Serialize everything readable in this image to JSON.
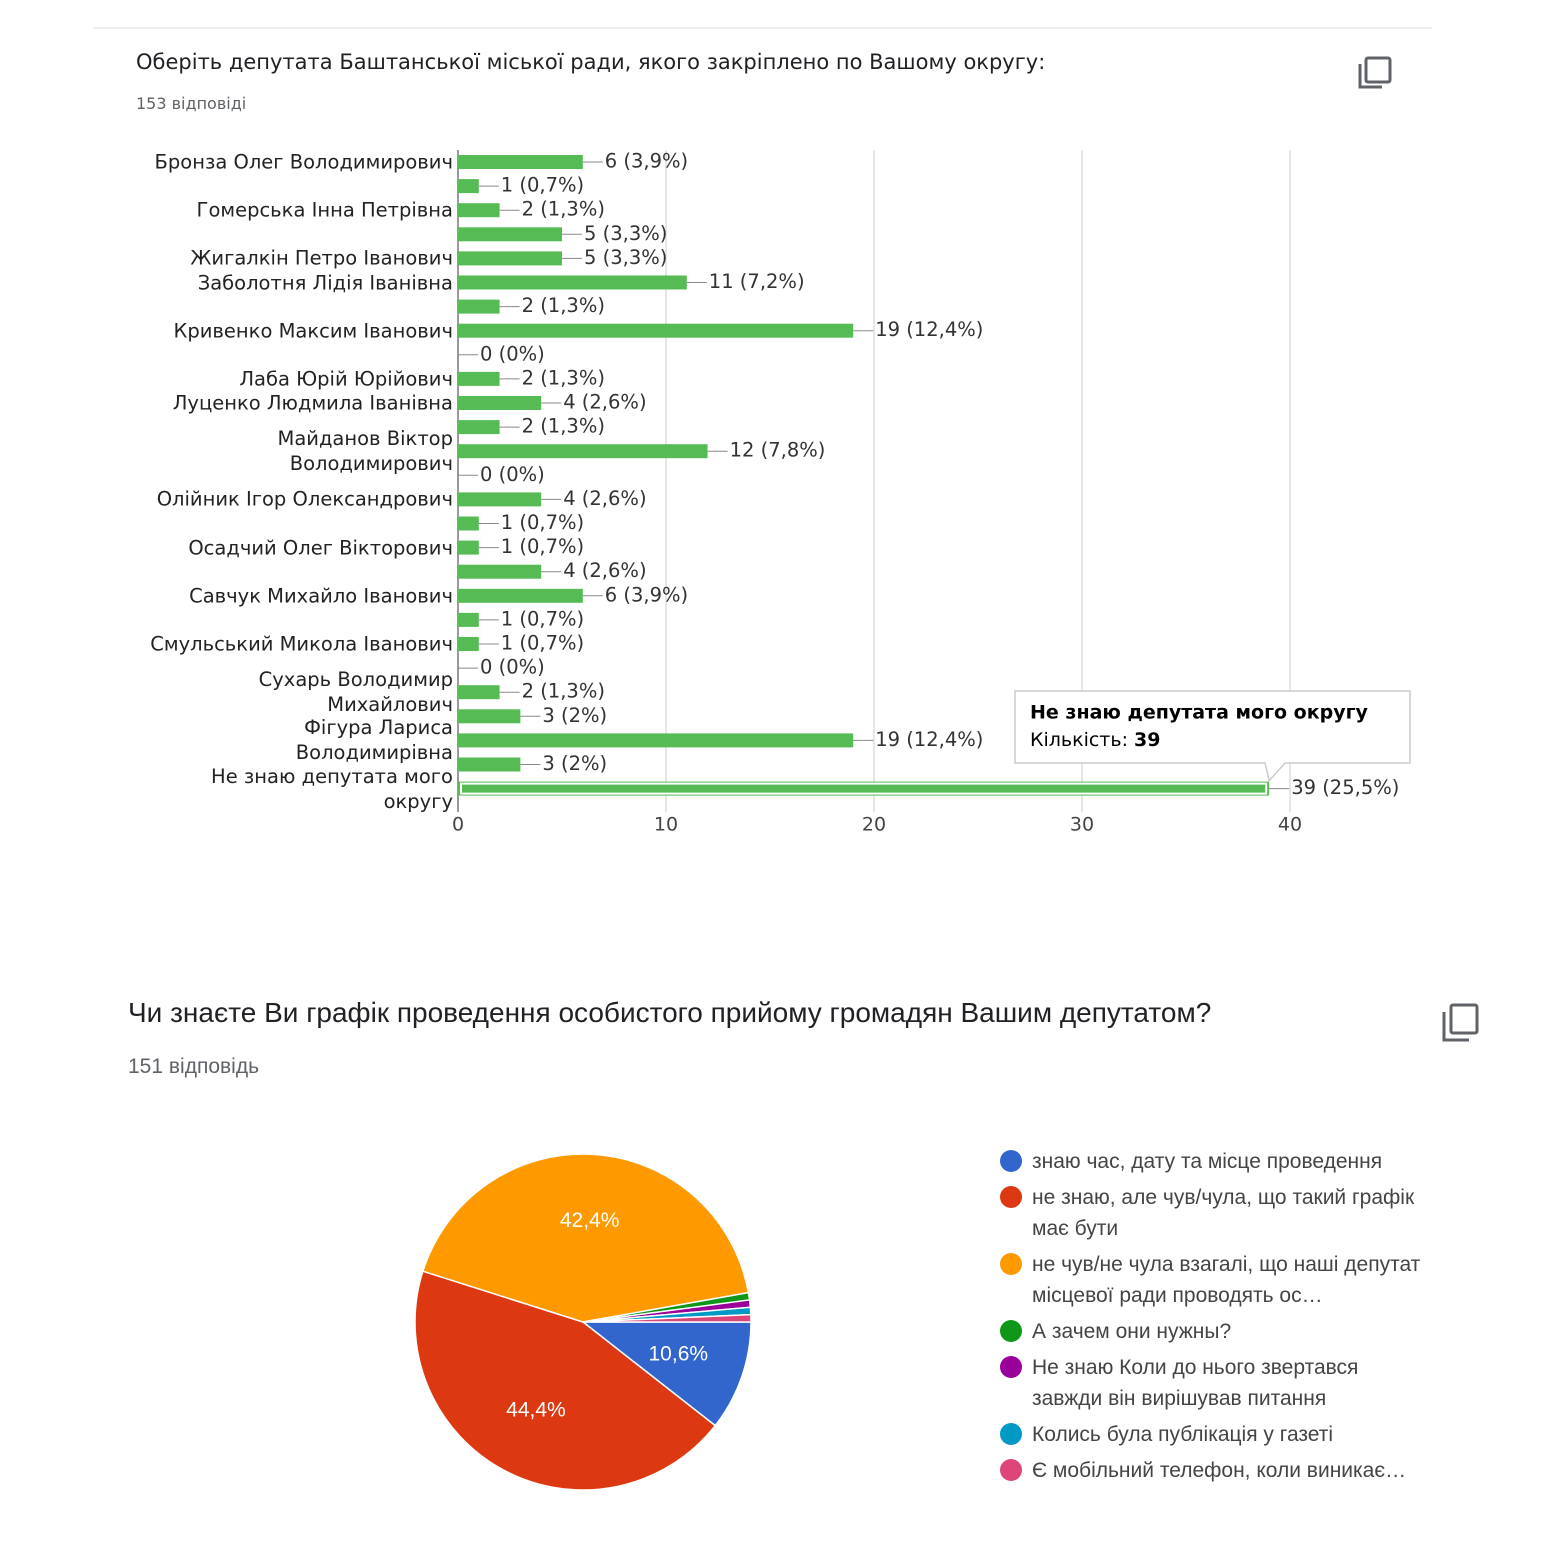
{
  "chart_data": [
    {
      "type": "bar",
      "orientation": "horizontal",
      "title": "Оберіть депутата Баштанської міської ради, якого закріплено по Вашому округу:",
      "subtitle": "153 відповіді",
      "categories": [
        "Бронза Олег Володимирович",
        null,
        "Гомерська Інна Петрівна",
        null,
        "Жигалкін Петро Іванович",
        "Заболотня Лідія Іванівна",
        null,
        "Кривенко Максим Іванович",
        null,
        "Лаба Юрій Юрійович",
        "Луценко Людмила Іванівна",
        null,
        "Майданов Віктор Володимирович",
        null,
        "Олійник Ігор Олександрович",
        null,
        "Осадчий Олег Вікторович",
        null,
        "Савчук Михайло Іванович",
        null,
        "Смульський Микола Іванович",
        null,
        "Сухарь Володимир Михайлович",
        null,
        "Фігура Лариса Володимирівна",
        null,
        "Не знаю депутата мого округу"
      ],
      "values": [
        6,
        1,
        2,
        5,
        5,
        11,
        2,
        19,
        0,
        2,
        4,
        2,
        12,
        0,
        4,
        1,
        1,
        4,
        6,
        1,
        1,
        0,
        2,
        3,
        19,
        3,
        39
      ],
      "value_labels": [
        "6 (3,9%)",
        "1 (0,7%)",
        "2 (1,3%)",
        "5 (3,3%)",
        "5 (3,3%)",
        "11 (7,2%)",
        "2 (1,3%)",
        "19 (12,4%)",
        "0 (0%)",
        "2 (1,3%)",
        "4 (2,6%)",
        "2 (1,3%)",
        "12 (7,8%)",
        "0 (0%)",
        "4 (2,6%)",
        "1 (0,7%)",
        "1 (0,7%)",
        "4 (2,6%)",
        "6 (3,9%)",
        "1 (0,7%)",
        "1 (0,7%)",
        "0 (0%)",
        "2 (1,3%)",
        "3 (2%)",
        "19 (12,4%)",
        "3 (2%)",
        "39 (25,5%)"
      ],
      "color": "#57bb55",
      "xlim": [
        0,
        40
      ],
      "xticks": [
        0,
        10,
        20,
        30,
        40
      ],
      "grid": true,
      "tooltip": {
        "title": "Не знаю депутата мого округу",
        "label": "Кількість:"
      }
    },
    {
      "type": "pie",
      "title": "Чи знаєте Ви графік проведення особистого прийому громадян Вашим депутатом?",
      "subtitle": "151 відповідь",
      "categories": [
        "знаю час, дату та місце проведення",
        "не знаю, але чув/чула, що такий графік має бути",
        "не чув/не чула взагалі, що наші депутат місцевої ради проводять ос…",
        "А зачем они нужны?",
        "Не знаю Коли до нього звертався завжди він вирішував питання",
        "Колись була публікація у газеті",
        "Є мобільний телефон, коли виникає…"
      ],
      "values": [
        10.6,
        44.4,
        42.4,
        0.7,
        0.7,
        0.7,
        0.7
      ],
      "value_labels": [
        "10,6%",
        "44,4%",
        "42,4%",
        null,
        null,
        null,
        null
      ],
      "colors": [
        "#3366cc",
        "#dc3912",
        "#ff9900",
        "#109618",
        "#990099",
        "#0099c6",
        "#dd4477"
      ],
      "legend": "right"
    }
  ]
}
